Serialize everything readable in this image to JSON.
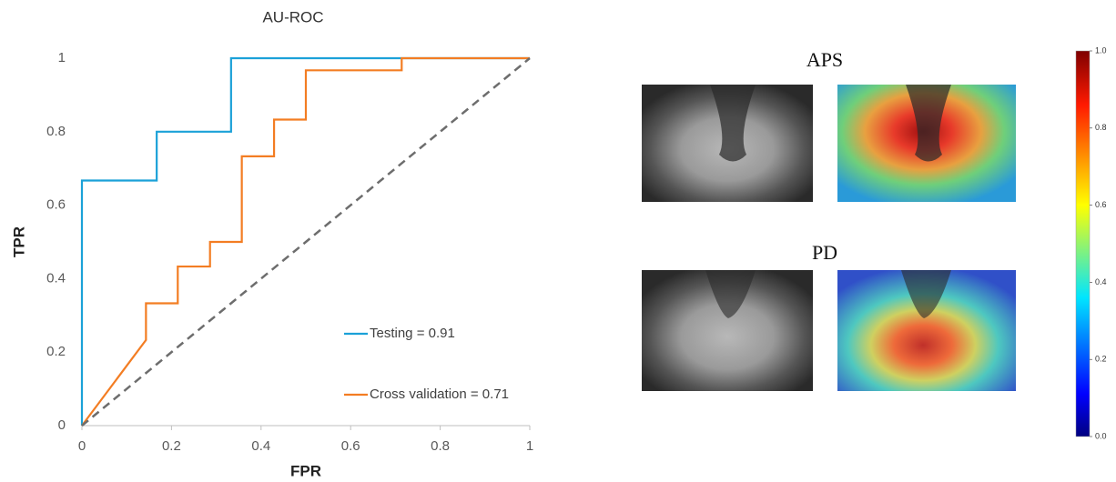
{
  "chart_data": [
    {
      "type": "line",
      "title": "AU-ROC",
      "x_label": "FPR",
      "y_label": "TPR",
      "xlim": [
        0,
        1
      ],
      "ylim": [
        0,
        1
      ],
      "xticks": [
        0,
        0.2,
        0.4,
        0.6,
        0.8,
        1
      ],
      "yticks": [
        0,
        0.2,
        0.4,
        0.6,
        0.8,
        1
      ],
      "grid": false,
      "legend": "lower right",
      "series": [
        {
          "name": "Testing = 0.91",
          "color": "#1ba1d8",
          "x": [
            0,
            0,
            0.167,
            0.167,
            0.333,
            0.333,
            1
          ],
          "values": [
            0,
            0.667,
            0.667,
            0.8,
            0.8,
            1,
            1
          ]
        },
        {
          "name": "Cross validation = 0.71",
          "color": "#f37d23",
          "x": [
            0,
            0.143,
            0.143,
            0.214,
            0.214,
            0.286,
            0.286,
            0.357,
            0.357,
            0.429,
            0.429,
            0.5,
            0.5,
            0.714,
            0.714,
            1
          ],
          "values": [
            0,
            0.233,
            0.333,
            0.333,
            0.433,
            0.433,
            0.5,
            0.5,
            0.733,
            0.733,
            0.833,
            0.833,
            0.967,
            0.967,
            1,
            1
          ]
        },
        {
          "color": "#6d6d6d",
          "dashed": true,
          "x": [
            0,
            1
          ],
          "values": [
            0,
            1
          ]
        }
      ]
    },
    {
      "type": "colorbar",
      "panels": [
        "APS",
        "PD"
      ],
      "colormap": "jet",
      "clim": [
        0,
        1
      ],
      "ticks": [
        {
          "value": 0,
          "label": "0.0"
        },
        {
          "value": 0.2,
          "label": "0.2"
        },
        {
          "value": 0.4,
          "label": "0.4"
        },
        {
          "value": 0.6,
          "label": "0.6"
        },
        {
          "value": 0.8,
          "label": "0.8"
        },
        {
          "value": 1,
          "label": "1.0"
        }
      ]
    }
  ]
}
